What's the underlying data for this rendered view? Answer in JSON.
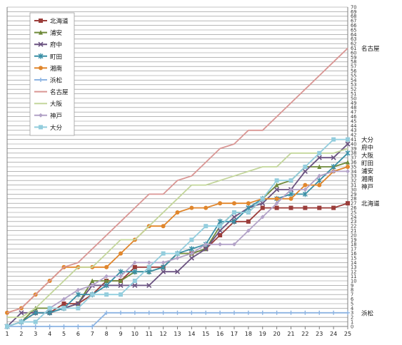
{
  "chart_data": {
    "type": "line",
    "x": [
      1,
      2,
      3,
      4,
      5,
      6,
      7,
      8,
      9,
      10,
      11,
      12,
      13,
      14,
      15,
      16,
      17,
      18,
      19,
      20,
      21,
      22,
      23,
      24,
      25
    ],
    "xlim": [
      1,
      25
    ],
    "ylim": [
      0,
      70
    ],
    "ytick_step": 1,
    "grid": true,
    "legend_position": "top-left",
    "series": [
      {
        "name": "北海道",
        "color": "#9b3d3a",
        "marker": "square",
        "values": [
          0,
          1,
          3,
          3,
          5,
          5,
          7,
          10,
          10,
          13,
          13,
          13,
          16,
          16,
          17,
          20,
          23,
          23,
          26,
          26,
          26,
          26,
          26,
          26,
          27
        ]
      },
      {
        "name": "浦安",
        "color": "#6f8a3a",
        "marker": "triangle",
        "values": [
          0,
          1,
          4,
          4,
          4,
          5,
          10,
          10,
          10,
          12,
          12,
          13,
          16,
          16,
          17,
          22,
          25,
          25,
          28,
          31,
          32,
          35,
          35,
          35,
          36
        ]
      },
      {
        "name": "府中",
        "color": "#6a5280",
        "marker": "x",
        "values": [
          0,
          3,
          3,
          3,
          4,
          5,
          9,
          9,
          9,
          9,
          9,
          12,
          12,
          15,
          17,
          21,
          24,
          26,
          27,
          30,
          30,
          34,
          37,
          37,
          40
        ]
      },
      {
        "name": "町田",
        "color": "#3a8fa6",
        "marker": "cross",
        "values": [
          0,
          1,
          3,
          3,
          4,
          7,
          7,
          9,
          12,
          12,
          12,
          13,
          16,
          17,
          18,
          23,
          23,
          26,
          28,
          28,
          29,
          29,
          32,
          35,
          38
        ]
      },
      {
        "name": "湘南",
        "color": "#e0862c",
        "marker": "circle",
        "values": [
          3,
          4,
          7,
          10,
          13,
          13,
          13,
          13,
          16,
          19,
          22,
          22,
          25,
          26,
          26,
          27,
          27,
          27,
          28,
          28,
          28,
          31,
          31,
          34,
          35
        ]
      },
      {
        "name": "浜松",
        "color": "#8db4e2",
        "marker": "plus",
        "values": [
          0,
          0,
          0,
          0,
          0,
          0,
          0,
          3,
          3,
          3,
          3,
          3,
          3,
          3,
          3,
          3,
          3,
          3,
          3,
          3,
          3,
          3,
          3,
          3,
          3
        ]
      },
      {
        "name": "名古屋",
        "color": "#d99694",
        "marker": "none",
        "values": [
          3,
          4,
          7,
          10,
          13,
          14,
          17,
          20,
          23,
          26,
          29,
          29,
          32,
          33,
          36,
          39,
          40,
          43,
          43,
          46,
          49,
          52,
          55,
          58,
          61
        ]
      },
      {
        "name": "大阪",
        "color": "#c3d69b",
        "marker": "none",
        "values": [
          2,
          2,
          4,
          7,
          10,
          13,
          13,
          16,
          19,
          19,
          22,
          25,
          28,
          31,
          31,
          32,
          33,
          34,
          35,
          35,
          38,
          38,
          38,
          38,
          39
        ]
      },
      {
        "name": "神戸",
        "color": "#b2a2c7",
        "marker": "diamond",
        "values": [
          0,
          1,
          1,
          4,
          6,
          8,
          9,
          11,
          11,
          14,
          14,
          14,
          15,
          16,
          18,
          18,
          18,
          21,
          24,
          27,
          30,
          30,
          33,
          34,
          34
        ]
      },
      {
        "name": "大分",
        "color": "#93cddd",
        "marker": "square",
        "values": [
          0,
          1,
          1,
          4,
          4,
          4,
          7,
          7,
          7,
          10,
          13,
          16,
          16,
          19,
          22,
          22,
          25,
          25,
          28,
          32,
          32,
          35,
          38,
          41,
          41
        ]
      }
    ],
    "end_labels": [
      "名古屋",
      "大分",
      "府中",
      "大阪",
      "町田",
      "浦安",
      "湘南",
      "神戸",
      "北海道",
      "浜松"
    ]
  }
}
